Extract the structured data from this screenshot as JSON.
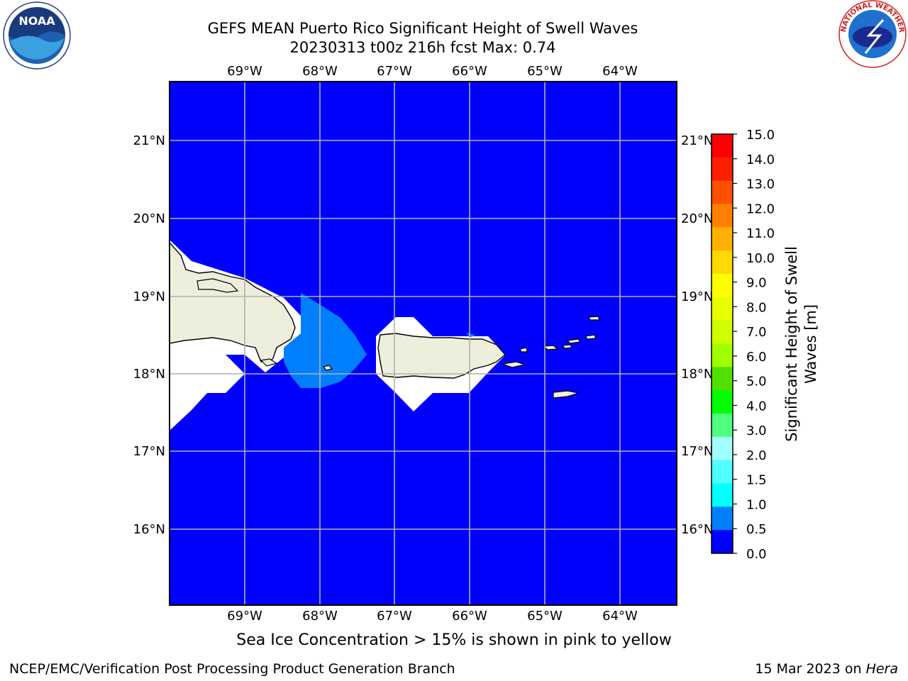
{
  "header": {
    "title_line1": "GEFS MEAN Puerto Rico Significant Height of Swell Waves",
    "title_line2": "20230313 t00z 216h fcst   Max: 0.74"
  },
  "logos": {
    "left": {
      "icon": "noaa-logo",
      "text": "NOAA"
    },
    "right": {
      "icon": "national-weather-service-logo",
      "text": "NATIONAL WEATHER SERVICE"
    }
  },
  "map": {
    "lon_ticks": [
      "69°W",
      "68°W",
      "67°W",
      "66°W",
      "65°W",
      "64°W"
    ],
    "lat_ticks": [
      "21°N",
      "20°N",
      "19°N",
      "18°N",
      "17°N",
      "16°N"
    ],
    "colors": {
      "ocean": "#0000ff",
      "land": "#eeeedd",
      "coast": "#000000",
      "grid": "#b0b0b0",
      "swell_patch": "#0080ff",
      "no_data": "#ffffff"
    }
  },
  "colorbar": {
    "label_line1": "Significant Height of Swell",
    "label_line2": "Waves [m]",
    "ticks": [
      "15.0",
      "14.0",
      "13.0",
      "12.0",
      "11.0",
      "10.0",
      "9.0",
      "8.0",
      "7.0",
      "6.0",
      "5.0",
      "4.0",
      "3.0",
      "2.0",
      "1.5",
      "1.0",
      "0.5",
      "0.0"
    ],
    "colors_top_to_bottom": [
      "#ff0000",
      "#ff2000",
      "#ff5000",
      "#ff8000",
      "#ffb000",
      "#ffd800",
      "#ffff00",
      "#e8ff00",
      "#d0ff00",
      "#a0ff00",
      "#50e000",
      "#00ff00",
      "#50ff80",
      "#a0ffff",
      "#50ffff",
      "#00ffff",
      "#0080ff",
      "#0000ff"
    ]
  },
  "footer": {
    "note": "Sea Ice Concentration > 15% is shown in pink to yellow",
    "left": "NCEP/EMC/Verification Post Processing Product Generation Branch",
    "right_date": "15 Mar 2023 on ",
    "right_host": "Hera"
  }
}
